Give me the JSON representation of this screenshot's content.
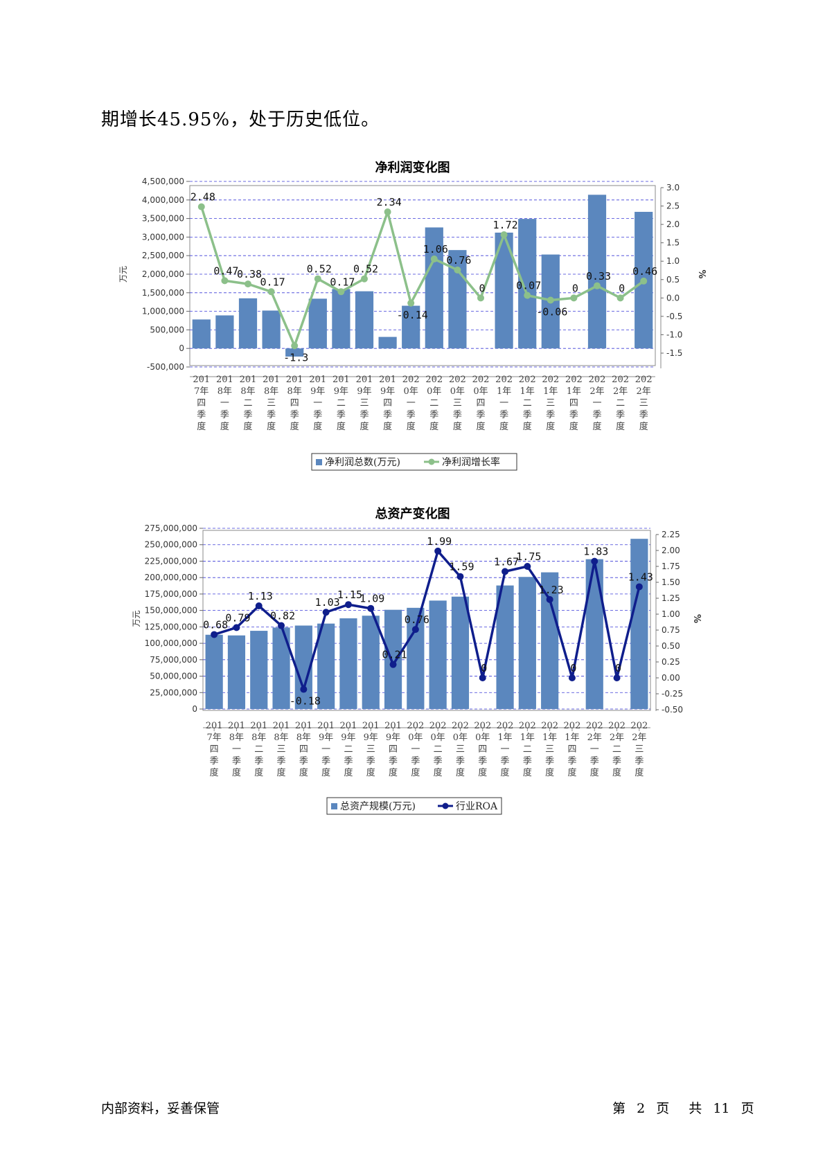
{
  "intro_text": "期增长45.95%，处于历史低位。",
  "footer": {
    "left": "内部资料，妥善保管",
    "page_prefix": "第",
    "page_num": "2",
    "page_unit": "页",
    "total_prefix": "共",
    "total_num": "11",
    "total_unit": "页"
  },
  "colors": {
    "bar": "#5b87be",
    "line1": "#8cc08a",
    "line2": "#0f1e8c",
    "grid": "#3a3ad8"
  },
  "chart_data": [
    {
      "type": "bar",
      "title": "净利润变化图",
      "categories": [
        [
          "201",
          "7年",
          "四",
          "季",
          "度"
        ],
        [
          "201",
          "8年",
          "一",
          "季",
          "度"
        ],
        [
          "201",
          "8年",
          "二",
          "季",
          "度"
        ],
        [
          "201",
          "8年",
          "三",
          "季",
          "度"
        ],
        [
          "201",
          "8年",
          "四",
          "季",
          "度"
        ],
        [
          "201",
          "9年",
          "一",
          "季",
          "度"
        ],
        [
          "201",
          "9年",
          "二",
          "季",
          "度"
        ],
        [
          "201",
          "9年",
          "三",
          "季",
          "度"
        ],
        [
          "201",
          "9年",
          "四",
          "季",
          "度"
        ],
        [
          "202",
          "0年",
          "一",
          "季",
          "度"
        ],
        [
          "202",
          "0年",
          "二",
          "季",
          "度"
        ],
        [
          "202",
          "0年",
          "三",
          "季",
          "度"
        ],
        [
          "202",
          "0年",
          "四",
          "季",
          "度"
        ],
        [
          "202",
          "1年",
          "一",
          "季",
          "度"
        ],
        [
          "202",
          "1年",
          "二",
          "季",
          "度"
        ],
        [
          "202",
          "1年",
          "三",
          "季",
          "度"
        ],
        [
          "202",
          "1年",
          "四",
          "季",
          "度"
        ],
        [
          "202",
          "2年",
          "一",
          "季",
          "度"
        ],
        [
          "202",
          "2年",
          "二",
          "季",
          "度"
        ],
        [
          "202",
          "2年",
          "三",
          "季",
          "度"
        ]
      ],
      "ylabel_left": "万元",
      "ylabel_right": "%",
      "left_ticks": [
        "4,500,000",
        "4,000,000",
        "3,500,000",
        "3,000,000",
        "2,500,000",
        "2,000,000",
        "1,500,000",
        "1,000,000",
        "500,000",
        "0",
        "-500,000"
      ],
      "right_ticks": [
        "3.0",
        "2.5",
        "2.0",
        "1.5",
        "1.0",
        "0.5",
        "0.0",
        "-0.5",
        "-1.0",
        "-1.5"
      ],
      "ylim_left": [
        -500000,
        4500000
      ],
      "ylim_right": [
        -1.5,
        3.0
      ],
      "series": [
        {
          "name": "净利润总数(万元)",
          "kind": "bar",
          "values": [
            780000,
            890000,
            1350000,
            1020000,
            -220000,
            1340000,
            1600000,
            1540000,
            310000,
            1150000,
            3260000,
            2650000,
            null,
            3120000,
            3490000,
            2530000,
            null,
            4140000,
            null,
            3680000
          ]
        },
        {
          "name": "净利润增长率",
          "kind": "line",
          "values": [
            2.48,
            0.47,
            0.38,
            0.17,
            -1.3,
            0.52,
            0.17,
            0.52,
            2.34,
            -0.14,
            1.06,
            0.76,
            0,
            1.72,
            0.07,
            -0.06,
            0,
            0.33,
            0,
            0.46
          ],
          "labels": [
            "2.48",
            "0.47",
            "0.38",
            "0.17",
            "-1.3",
            "0.52",
            "0.17",
            "0.52",
            "2.34",
            "-0.14",
            "1.06",
            "0.76",
            "0",
            "1.72",
            "0.07",
            "-0.06",
            "0",
            "0.33",
            "0",
            "0.46"
          ]
        }
      ]
    },
    {
      "type": "bar",
      "title": "总资产变化图",
      "categories": [
        [
          "201",
          "7年",
          "四",
          "季",
          "度"
        ],
        [
          "201",
          "8年",
          "一",
          "季",
          "度"
        ],
        [
          "201",
          "8年",
          "二",
          "季",
          "度"
        ],
        [
          "201",
          "8年",
          "三",
          "季",
          "度"
        ],
        [
          "201",
          "8年",
          "四",
          "季",
          "度"
        ],
        [
          "201",
          "9年",
          "一",
          "季",
          "度"
        ],
        [
          "201",
          "9年",
          "二",
          "季",
          "度"
        ],
        [
          "201",
          "9年",
          "三",
          "季",
          "度"
        ],
        [
          "201",
          "9年",
          "四",
          "季",
          "度"
        ],
        [
          "202",
          "0年",
          "一",
          "季",
          "度"
        ],
        [
          "202",
          "0年",
          "二",
          "季",
          "度"
        ],
        [
          "202",
          "0年",
          "三",
          "季",
          "度"
        ],
        [
          "202",
          "0年",
          "四",
          "季",
          "度"
        ],
        [
          "202",
          "1年",
          "一",
          "季",
          "度"
        ],
        [
          "202",
          "1年",
          "二",
          "季",
          "度"
        ],
        [
          "202",
          "1年",
          "三",
          "季",
          "度"
        ],
        [
          "202",
          "1年",
          "四",
          "季",
          "度"
        ],
        [
          "202",
          "2年",
          "一",
          "季",
          "度"
        ],
        [
          "202",
          "2年",
          "二",
          "季",
          "度"
        ],
        [
          "202",
          "2年",
          "三",
          "季",
          "度"
        ]
      ],
      "ylabel_left": "万元",
      "ylabel_right": "%",
      "left_ticks": [
        "275,000,000",
        "250,000,000",
        "225,000,000",
        "200,000,000",
        "175,000,000",
        "150,000,000",
        "125,000,000",
        "100,000,000",
        "75,000,000",
        "50,000,000",
        "25,000,000",
        "0"
      ],
      "right_ticks": [
        "2.25",
        "2.00",
        "1.75",
        "1.50",
        "1.25",
        "1.00",
        "0.75",
        "0.50",
        "0.25",
        "0.00",
        "-0.25",
        "-0.50"
      ],
      "ylim_left": [
        0,
        275000000
      ],
      "ylim_right": [
        -0.5,
        2.25
      ],
      "series": [
        {
          "name": "总资产规模(万元)",
          "kind": "bar",
          "values": [
            113000000,
            112000000,
            119000000,
            124000000,
            127000000,
            130000000,
            138000000,
            142000000,
            151000000,
            154000000,
            165000000,
            171000000,
            null,
            188000000,
            201000000,
            208000000,
            null,
            228000000,
            null,
            259000000
          ]
        },
        {
          "name": "行业ROA",
          "kind": "line",
          "values": [
            0.68,
            0.79,
            1.13,
            0.82,
            -0.18,
            1.03,
            1.15,
            1.09,
            0.21,
            0.76,
            1.99,
            1.59,
            0,
            1.67,
            1.75,
            1.23,
            0,
            1.83,
            0,
            1.43
          ],
          "labels": [
            "0.68",
            "0.79",
            "1.13",
            "0.82",
            "-0.18",
            "1.03",
            "1.15",
            "1.09",
            "0.21",
            "0.76",
            "1.99",
            "1.59",
            "0",
            "1.67",
            "1.75",
            "1.23",
            "0",
            "1.83",
            "0",
            "1.43"
          ]
        }
      ]
    }
  ]
}
